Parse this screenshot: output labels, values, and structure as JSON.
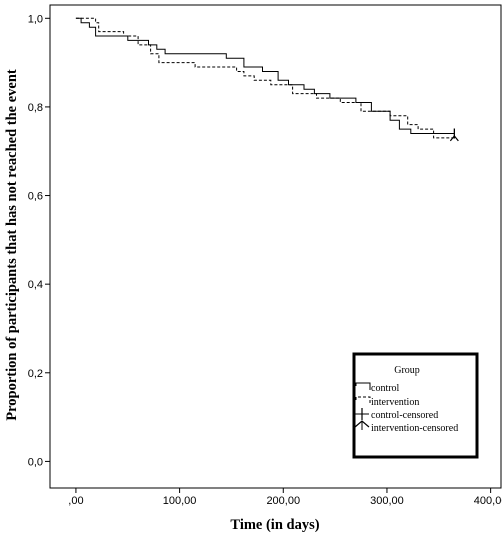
{
  "chart_data": {
    "type": "line",
    "subtype": "kaplan-meier-step",
    "title": "",
    "xlabel": "Time (in days)",
    "ylabel": "Proportion of participants that has not reached the event",
    "xlim": [
      -25,
      410
    ],
    "ylim": [
      -0.06,
      1.03
    ],
    "xticks": [
      0,
      100,
      200,
      300,
      400
    ],
    "xtick_labels": [
      ",00",
      "100,00",
      "200,00",
      "300,00",
      "400,00"
    ],
    "yticks": [
      0.0,
      0.2,
      0.4,
      0.6,
      0.8,
      1.0
    ],
    "ytick_labels": [
      "0,0",
      "0,2",
      "0,4",
      "0,6",
      "0,8",
      "1,0"
    ],
    "grid": false,
    "legend": {
      "title": "Group",
      "placement": "bottom-right",
      "entries": [
        "control",
        "intervention",
        "control-censored",
        "intervention-censored"
      ]
    },
    "series": [
      {
        "name": "control",
        "style": "solid",
        "color": "#000000",
        "step_points": [
          [
            0,
            1.0
          ],
          [
            5,
            0.99
          ],
          [
            13,
            0.98
          ],
          [
            19,
            0.96
          ],
          [
            50,
            0.95
          ],
          [
            70,
            0.94
          ],
          [
            78,
            0.93
          ],
          [
            86,
            0.92
          ],
          [
            145,
            0.91
          ],
          [
            162,
            0.89
          ],
          [
            180,
            0.88
          ],
          [
            195,
            0.86
          ],
          [
            205,
            0.85
          ],
          [
            220,
            0.84
          ],
          [
            230,
            0.83
          ],
          [
            245,
            0.82
          ],
          [
            270,
            0.81
          ],
          [
            285,
            0.79
          ],
          [
            303,
            0.77
          ],
          [
            312,
            0.75
          ],
          [
            323,
            0.74
          ],
          [
            365,
            0.74
          ]
        ],
        "censored": [
          [
            365,
            0.74
          ]
        ]
      },
      {
        "name": "intervention",
        "style": "dashed",
        "color": "#000000",
        "step_points": [
          [
            0,
            1.0
          ],
          [
            19,
            0.99
          ],
          [
            22,
            0.97
          ],
          [
            46,
            0.96
          ],
          [
            60,
            0.94
          ],
          [
            72,
            0.92
          ],
          [
            80,
            0.9
          ],
          [
            115,
            0.89
          ],
          [
            155,
            0.88
          ],
          [
            162,
            0.87
          ],
          [
            172,
            0.86
          ],
          [
            188,
            0.85
          ],
          [
            209,
            0.83
          ],
          [
            232,
            0.82
          ],
          [
            255,
            0.81
          ],
          [
            275,
            0.79
          ],
          [
            303,
            0.78
          ],
          [
            320,
            0.76
          ],
          [
            330,
            0.75
          ],
          [
            345,
            0.73
          ],
          [
            365,
            0.73
          ]
        ],
        "censored": [
          [
            365,
            0.73
          ]
        ]
      }
    ]
  }
}
